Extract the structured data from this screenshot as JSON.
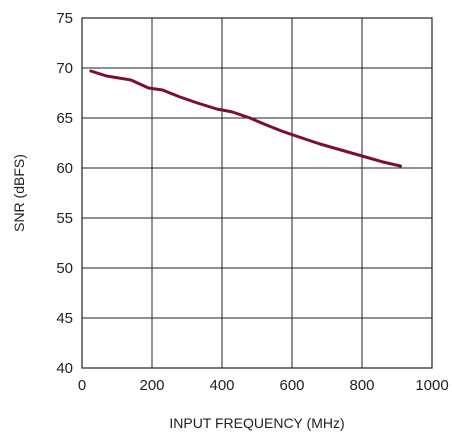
{
  "chart_data": {
    "type": "line",
    "title": "",
    "xlabel": "INPUT FREQUENCY (MHz)",
    "ylabel": "SNR (dBFS)",
    "xlim": [
      0,
      1000
    ],
    "ylim": [
      40,
      75
    ],
    "xticks": [
      0,
      200,
      400,
      600,
      800,
      1000
    ],
    "yticks": [
      40,
      45,
      50,
      55,
      60,
      65,
      70,
      75
    ],
    "grid": true,
    "legend": "none",
    "series": [
      {
        "color": "#7a0f2e",
        "x": [
          25,
          70,
          140,
          190,
          230,
          280,
          330,
          385,
          430,
          480,
          520,
          570,
          620,
          680,
          740,
          800,
          860,
          910
        ],
        "y": [
          69.7,
          69.2,
          68.8,
          68.0,
          67.8,
          67.1,
          66.5,
          65.9,
          65.6,
          65.0,
          64.4,
          63.7,
          63.1,
          62.4,
          61.8,
          61.2,
          60.6,
          60.2
        ]
      }
    ]
  }
}
